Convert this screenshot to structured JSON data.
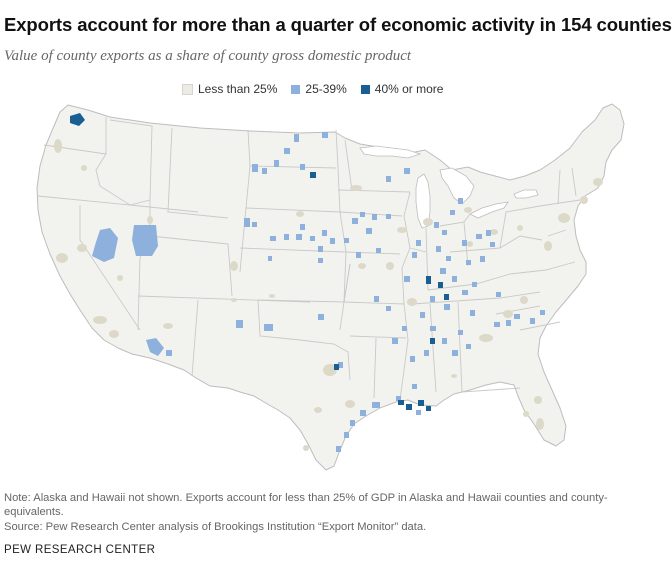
{
  "title": "Exports account for more than a quarter of economic activity in 154 counties",
  "subtitle": "Value of county exports as a share of county gross domestic product",
  "legend": [
    {
      "label": "Less than 25%",
      "color": "#ecebe4"
    },
    {
      "label": "25-39%",
      "color": "#8eb0dc"
    },
    {
      "label": "40% or more",
      "color": "#1a5f93"
    }
  ],
  "map": {
    "land_color": "#f2f2ef",
    "border_color": "#c9c9c9",
    "urban_color": "#ddd9c8",
    "mid_color": "#8eb0dc",
    "high_color": "#1a5f93"
  },
  "note": "Note: Alaska and Hawaii not shown. Exports account for less than 25% of GDP in Alaska and Hawaii counties and county-equivalents.",
  "source": "Source: Pew Research Center analysis of Brookings Institution “Export Monitor” data.",
  "organization": "PEW RESEARCH CENTER"
}
